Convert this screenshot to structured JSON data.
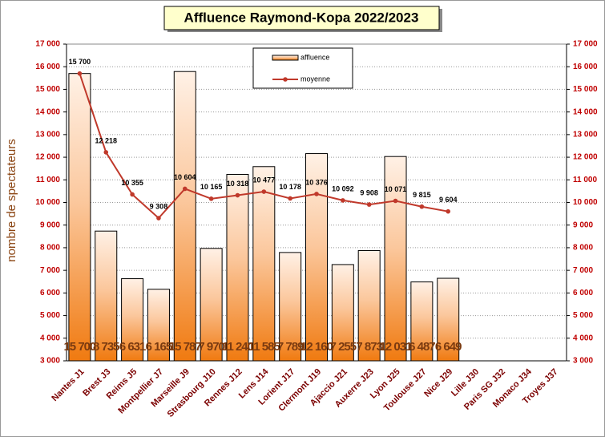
{
  "chart_data": {
    "type": "bar",
    "title": "Affluence Raymond-Kopa 2022/2023",
    "ylabel": "nombre de spectateurs",
    "categories": [
      "Nantes J1",
      "Brest J3",
      "Reims J5",
      "Montpellier J7",
      "Marseille J9",
      "Strasbourg J10",
      "Rennes J12",
      "Lens J14",
      "Lorient J17",
      "Clermont J19",
      "Ajaccio J21",
      "Auxerre J23",
      "Lyon J25",
      "Toulouse J27",
      "Nice J29",
      "Lille J30",
      "Paris SG J32",
      "Monaco J34",
      "Troyes J37"
    ],
    "series": [
      {
        "name": "affluence",
        "type": "bar",
        "color": "#f07a10",
        "values": [
          15700,
          8735,
          6631,
          6165,
          15787,
          7970,
          11240,
          11585,
          7789,
          12160,
          7255,
          7873,
          12031,
          6487,
          6649,
          null,
          null,
          null,
          null
        ],
        "value_labels": [
          "15 700",
          "8 735",
          "6 631",
          "6 165",
          "15 787",
          "7 970",
          "11 240",
          "11 585",
          "7 789",
          "12 160",
          "7 255",
          "7 873",
          "12 031",
          "6 487",
          "6 649",
          null,
          null,
          null,
          null
        ]
      },
      {
        "name": "moyenne",
        "type": "line",
        "color": "#c0392b",
        "values": [
          15700,
          12218,
          10355,
          9308,
          10604,
          10165,
          10318,
          10477,
          10178,
          10376,
          10092,
          9908,
          10071,
          9815,
          9604,
          null,
          null,
          null,
          null
        ],
        "value_labels": [
          "15 700",
          "12 218",
          "10 355",
          "9 308",
          "10 604",
          "10 165",
          "10 318",
          "10 477",
          "10 178",
          "10 376",
          "10 092",
          "9 908",
          "10 071",
          "9 815",
          "9 604",
          null,
          null,
          null,
          null
        ]
      }
    ],
    "ylim": [
      3000,
      17000
    ],
    "yticks": [
      {
        "value": 3000,
        "label": "3 000"
      },
      {
        "value": 4000,
        "label": "4 000"
      },
      {
        "value": 5000,
        "label": "5 000"
      },
      {
        "value": 6000,
        "label": "6 000"
      },
      {
        "value": 7000,
        "label": "7 000"
      },
      {
        "value": 8000,
        "label": "8 000"
      },
      {
        "value": 9000,
        "label": "9 000"
      },
      {
        "value": 10000,
        "label": "10 000"
      },
      {
        "value": 11000,
        "label": "11 000"
      },
      {
        "value": 12000,
        "label": "12 000"
      },
      {
        "value": 13000,
        "label": "13 000"
      },
      {
        "value": 14000,
        "label": "14 000"
      },
      {
        "value": 15000,
        "label": "15 000"
      },
      {
        "value": 16000,
        "label": "16 000"
      },
      {
        "value": 17000,
        "label": "17 000"
      }
    ],
    "y2lim": [
      3000,
      17000
    ],
    "y2ticks": [
      {
        "value": 3000,
        "label": "3 000"
      },
      {
        "value": 4000,
        "label": "4 000"
      },
      {
        "value": 5000,
        "label": "5 000"
      },
      {
        "value": 6000,
        "label": "6 000"
      },
      {
        "value": 7000,
        "label": "7 000"
      },
      {
        "value": 8000,
        "label": "8 000"
      },
      {
        "value": 9000,
        "label": "9 000"
      },
      {
        "value": 10000,
        "label": "10 000"
      },
      {
        "value": 11000,
        "label": "11 000"
      },
      {
        "value": 12000,
        "label": "12 000"
      },
      {
        "value": 13000,
        "label": "13 000"
      },
      {
        "value": 14000,
        "label": "14 000"
      },
      {
        "value": 15000,
        "label": "15 000"
      },
      {
        "value": 16000,
        "label": "16 000"
      },
      {
        "value": 17000,
        "label": "17 000"
      }
    ],
    "grid": true,
    "legend": "top"
  }
}
